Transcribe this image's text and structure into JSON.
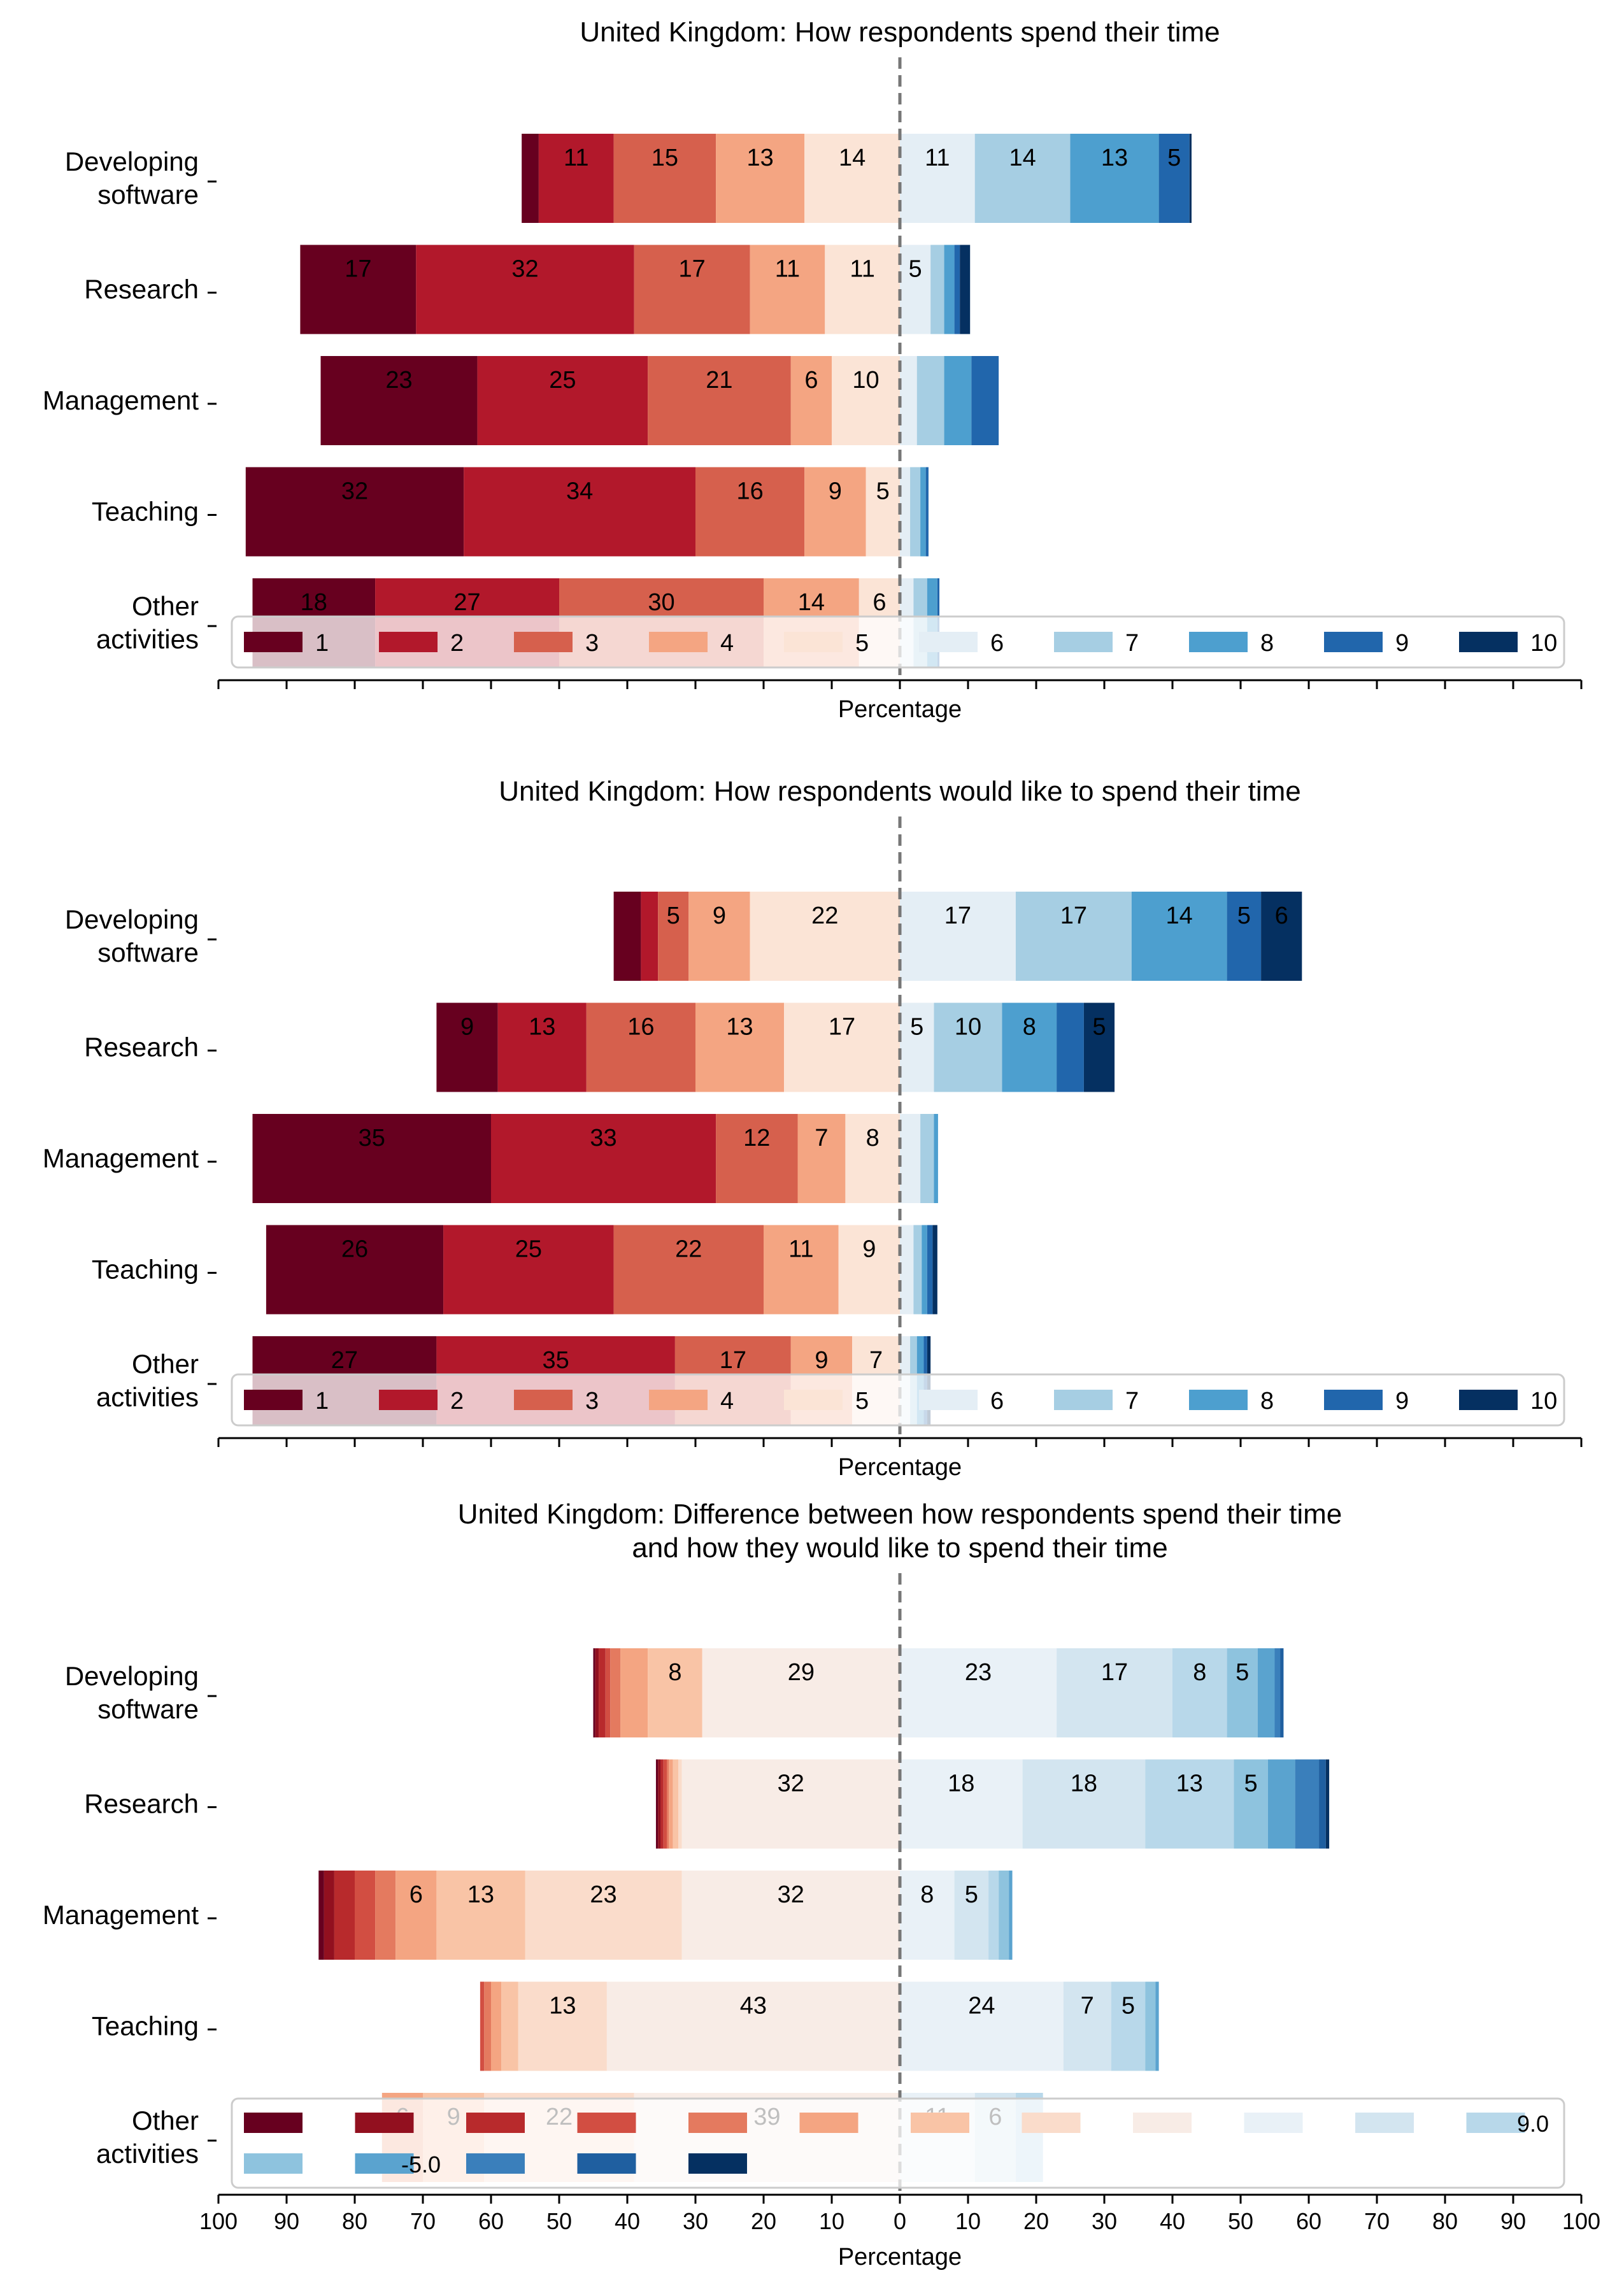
{
  "chart_data": [
    {
      "type": "bar",
      "orientation": "horizontal-diverging-stacked",
      "title": "United Kingdom: How respondents spend their time",
      "xlabel": "Percentage",
      "categories": [
        "Developing\nsoftware",
        "Research",
        "Management",
        "Teaching",
        "Other\nactivities"
      ],
      "center_after_level": 5,
      "series": [
        {
          "name": "1",
          "values": [
            2.5,
            17,
            23,
            32,
            18
          ]
        },
        {
          "name": "2",
          "values": [
            11,
            32,
            25,
            34,
            27
          ]
        },
        {
          "name": "3",
          "values": [
            15,
            17,
            21,
            16,
            30
          ]
        },
        {
          "name": "4",
          "values": [
            13,
            11,
            6,
            9,
            14
          ]
        },
        {
          "name": "5",
          "values": [
            14,
            11,
            10,
            5,
            6
          ]
        },
        {
          "name": "6",
          "values": [
            11,
            4.5,
            2.5,
            1.5,
            2
          ]
        },
        {
          "name": "7",
          "values": [
            14,
            2,
            4,
            1.5,
            2
          ]
        },
        {
          "name": "8",
          "values": [
            13,
            1.5,
            4,
            0.8,
            1.5
          ]
        },
        {
          "name": "9",
          "values": [
            4.5,
            0.8,
            4,
            0.4,
            0.3
          ]
        },
        {
          "name": "10",
          "values": [
            0.3,
            1.5,
            0,
            0,
            0
          ]
        }
      ],
      "legend_placement": "bottom, overlapping last row",
      "center_line": "dashed at 0"
    },
    {
      "type": "bar",
      "orientation": "horizontal-diverging-stacked",
      "title": "United Kingdom: How respondents would like to spend their time",
      "xlabel": "Percentage",
      "categories": [
        "Developing\nsoftware",
        "Research",
        "Management",
        "Teaching",
        "Other\nactivities"
      ],
      "center_after_level": 5,
      "series": [
        {
          "name": "1",
          "values": [
            4,
            9,
            35,
            26,
            27
          ]
        },
        {
          "name": "2",
          "values": [
            2.5,
            13,
            33,
            25,
            35
          ]
        },
        {
          "name": "3",
          "values": [
            4.5,
            16,
            12,
            22,
            17
          ]
        },
        {
          "name": "4",
          "values": [
            9,
            13,
            7,
            11,
            9
          ]
        },
        {
          "name": "5",
          "values": [
            22,
            17,
            8,
            9,
            7
          ]
        },
        {
          "name": "6",
          "values": [
            17,
            5,
            3,
            2,
            1.5
          ]
        },
        {
          "name": "7",
          "values": [
            17,
            10,
            2,
            1.2,
            1
          ]
        },
        {
          "name": "8",
          "values": [
            14,
            8,
            0.6,
            0.8,
            1
          ]
        },
        {
          "name": "9",
          "values": [
            5,
            4,
            0,
            0.8,
            0.5
          ]
        },
        {
          "name": "10",
          "values": [
            6,
            4.5,
            0,
            0.7,
            0.5
          ]
        }
      ],
      "legend_placement": "bottom, overlapping last row",
      "center_line": "dashed at 0"
    },
    {
      "type": "bar",
      "orientation": "horizontal-diverging-stacked",
      "title": "United Kingdom: Difference between how respondents spend their time\nand how they would like to spend their time",
      "xlabel": "Percentage",
      "xlim": [
        -100,
        100
      ],
      "xticks": [
        "100",
        "90",
        "80",
        "70",
        "60",
        "50",
        "40",
        "30",
        "20",
        "10",
        "0",
        "10",
        "20",
        "30",
        "40",
        "50",
        "60",
        "70",
        "80",
        "90",
        "100"
      ],
      "categories": [
        "Developing\nsoftware",
        "Research",
        "Management",
        "Teaching",
        "Other\nactivities"
      ],
      "center_after_level": 9,
      "legend_visible": [
        "9.0",
        "-5.0"
      ],
      "series": [
        {
          "name": "",
          "values": [
            0.3,
            0.3,
            0.8,
            0,
            0
          ]
        },
        {
          "name": "",
          "values": [
            0.5,
            0.4,
            1.5,
            0,
            0
          ]
        },
        {
          "name": "",
          "values": [
            1,
            0.4,
            3,
            0,
            0
          ]
        },
        {
          "name": "",
          "values": [
            0.7,
            0.5,
            3,
            0.6,
            0
          ]
        },
        {
          "name": "",
          "values": [
            1.5,
            0.3,
            3,
            1,
            0
          ]
        },
        {
          "name": "",
          "values": [
            4,
            0.6,
            6,
            1.5,
            6
          ]
        },
        {
          "name": "",
          "values": [
            8,
            0.8,
            13,
            2.5,
            9
          ]
        },
        {
          "name": "",
          "values": [
            0,
            0.5,
            23,
            13,
            22
          ]
        },
        {
          "name": "",
          "values": [
            29,
            32,
            32,
            43,
            39
          ]
        },
        {
          "name": "",
          "values": [
            23,
            18,
            8,
            24,
            11
          ]
        },
        {
          "name": "",
          "values": [
            17,
            18,
            5,
            7,
            6
          ]
        },
        {
          "name": "",
          "values": [
            8,
            13,
            1.5,
            5,
            4
          ]
        },
        {
          "name": "",
          "values": [
            4.5,
            5,
            1.5,
            1.5,
            0
          ]
        },
        {
          "name": "",
          "values": [
            2.5,
            4,
            0.5,
            0.5,
            0
          ]
        },
        {
          "name": "",
          "values": [
            0.8,
            3.5,
            0,
            0,
            0
          ]
        },
        {
          "name": "",
          "values": [
            0.5,
            1,
            0,
            0,
            0
          ]
        },
        {
          "name": "",
          "values": [
            0,
            0.5,
            0,
            0,
            0
          ]
        }
      ],
      "legend_placement": "bottom, overlapping last row",
      "center_line": "dashed at 0"
    }
  ]
}
